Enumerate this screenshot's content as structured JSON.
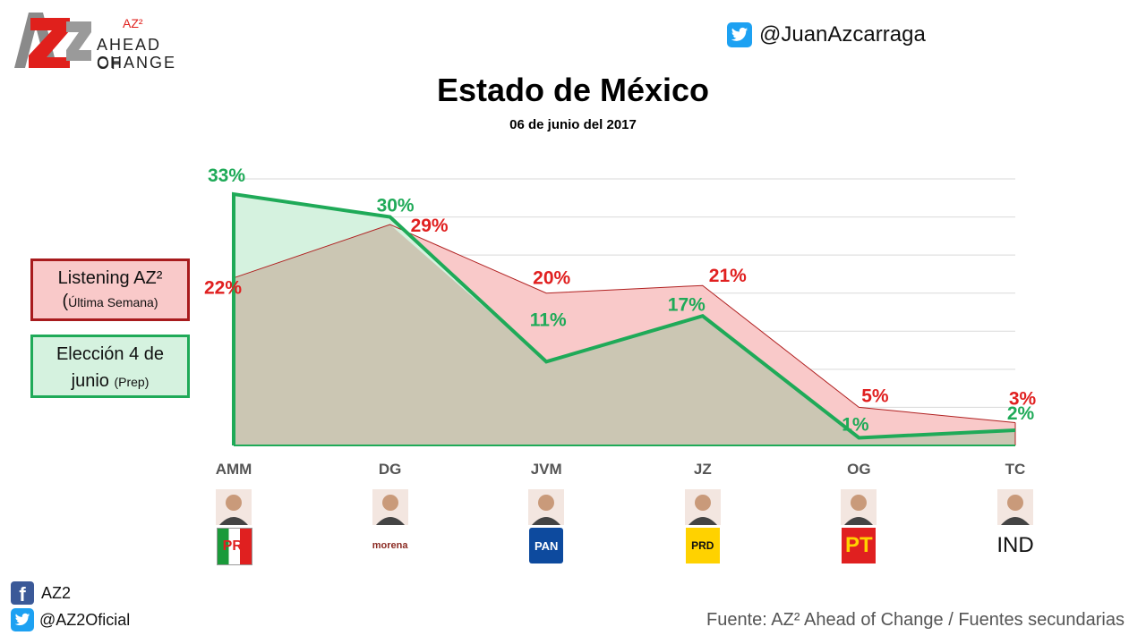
{
  "header": {
    "logo_superscript": "AZ²",
    "logo_line1": "AHEAD OF",
    "logo_line2": "CHANGE",
    "twitter_handle": "@JuanAzcarraga"
  },
  "legend": {
    "listening_label": "Listening AZ²",
    "listening_paren_open": "(",
    "listening_sub": "Última Semana)",
    "eleccion_label": "Elección 4 de",
    "eleccion_label2": "junio",
    "eleccion_sub": "(Prep)"
  },
  "chart_data": {
    "type": "area",
    "title": "Estado de México",
    "subtitle": "06 de junio del 2017",
    "categories": [
      "AMM",
      "DG",
      "JVM",
      "JZ",
      "OG",
      "TC"
    ],
    "series": [
      {
        "name": "Listening AZ² (Última Semana)",
        "values": [
          22,
          29,
          20,
          21,
          5,
          3
        ],
        "labels": [
          "22%",
          "29%",
          "20%",
          "21%",
          "5%",
          "3%"
        ],
        "color": "#e02020",
        "fill": "#f9c9c9"
      },
      {
        "name": "Elección 4 de junio (Prep)",
        "values": [
          33,
          30,
          11,
          17,
          1,
          2
        ],
        "labels": [
          "33%",
          "30%",
          "11%",
          "17%",
          "1%",
          "2%"
        ],
        "color": "#1faa58",
        "fill": "#d5f2df"
      }
    ],
    "ylim": [
      0,
      35
    ],
    "grid": true,
    "overlap_color": "#cbc6b3"
  },
  "candidates": [
    {
      "code": "AMM",
      "party": "PRI",
      "party_color": "#e02020"
    },
    {
      "code": "DG",
      "party": "morena",
      "party_color": "#8b2b23"
    },
    {
      "code": "JVM",
      "party": "PAN",
      "party_color": "#0d4a9e"
    },
    {
      "code": "JZ",
      "party": "PRD",
      "party_color": "#ffd200"
    },
    {
      "code": "OG",
      "party": "PT",
      "party_color": "#e02020"
    },
    {
      "code": "TC",
      "party": "IND",
      "party_color": "#111111"
    }
  ],
  "footer": {
    "facebook_name": "AZ2",
    "twitter_name": "@AZ2Oficial",
    "source": "Fuente: AZ² Ahead of Change / Fuentes secundarias"
  }
}
